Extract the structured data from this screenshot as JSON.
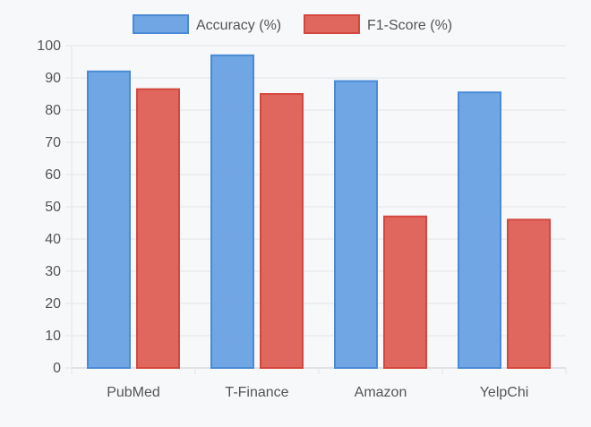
{
  "chart_data": {
    "type": "bar",
    "categories": [
      "PubMed",
      "T-Finance",
      "Amazon",
      "YelpChi"
    ],
    "series": [
      {
        "name": "Accuracy (%)",
        "values": [
          92,
          97,
          89,
          85.5
        ]
      },
      {
        "name": "F1-Score (%)",
        "values": [
          86.5,
          85,
          47,
          46
        ]
      }
    ],
    "ylim": [
      0,
      100
    ],
    "yticks": [
      0,
      10,
      20,
      30,
      40,
      50,
      60,
      70,
      80,
      90,
      100
    ],
    "grid": true,
    "legend_position": "top-center"
  },
  "colors": {
    "series_fill": [
      "#6fa6e3",
      "#e0675e"
    ],
    "series_stroke": [
      "#4a8ad6",
      "#d4473e"
    ],
    "grid": "#e2e4e8",
    "axis": "#c9ccd1",
    "tick_text": "#555555",
    "legend_text": "#555555"
  }
}
